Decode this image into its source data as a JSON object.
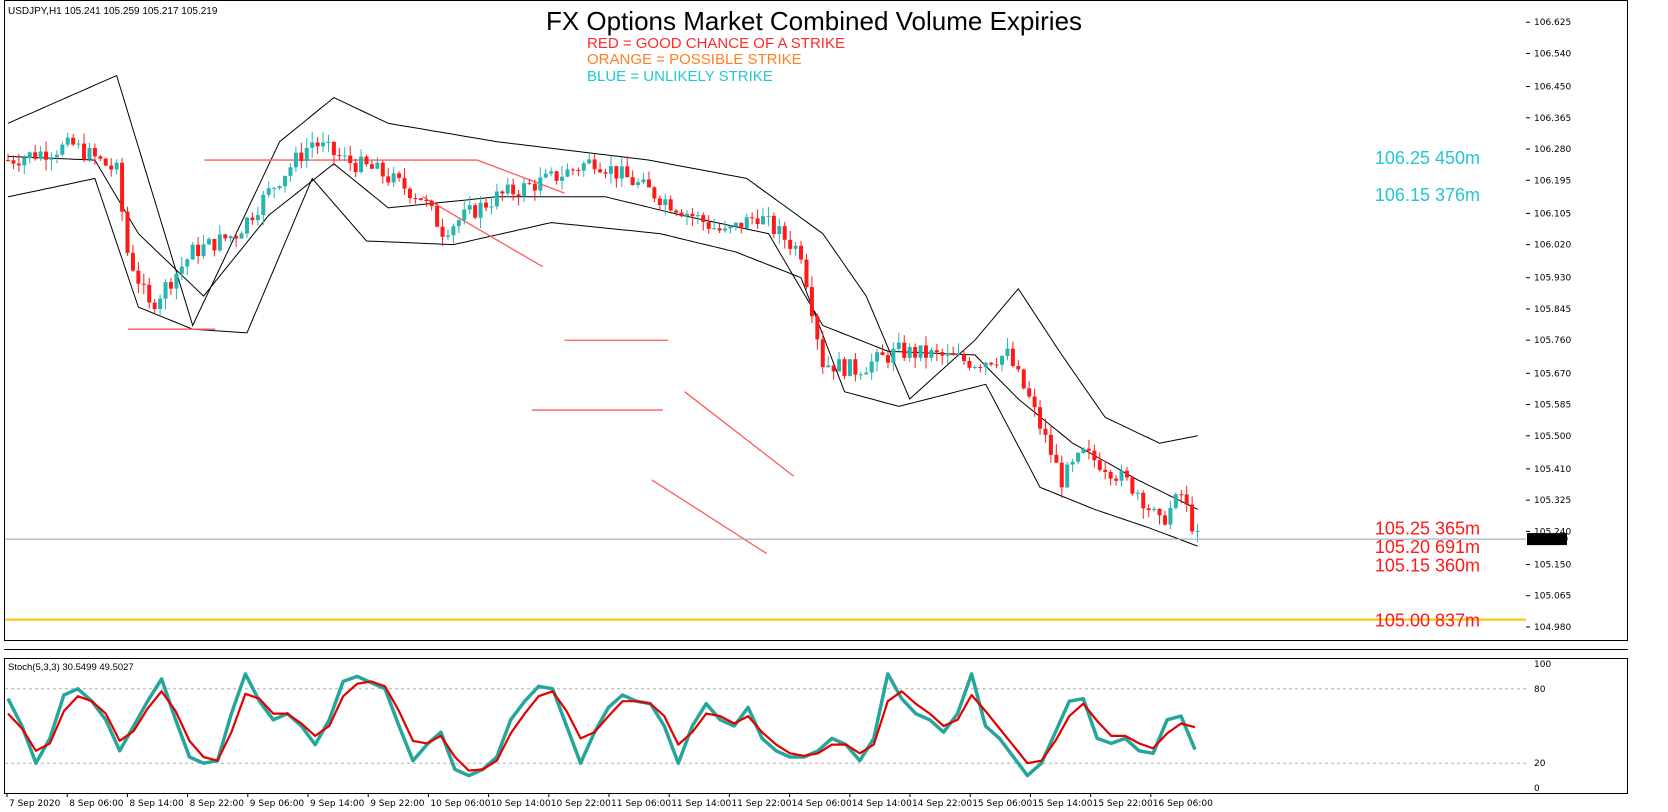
{
  "header": {
    "symbol_info": "USDJPY,H1  105.241 105.259 105.217 105.219",
    "title": "FX Options Market Combined Volume Expiries",
    "legend": [
      {
        "text": "RED = GOOD CHANCE OF A STRIKE",
        "color": "#ff2a2a"
      },
      {
        "text": "ORANGE = POSSIBLE STRIKE",
        "color": "#ff7f27"
      },
      {
        "text": "BLUE = UNLIKELY STRIKE",
        "color": "#23c6d2"
      }
    ]
  },
  "colors": {
    "bull": "#26b5b0",
    "bear": "#ff1a1a",
    "trendline": "#ff5a5a",
    "bands": "#000000",
    "current_price_line": "#8fa3b8",
    "strike_line": "#ffc000",
    "stoch_main": "#26a69a",
    "stoch_signal": "#e30000"
  },
  "chart_data": [
    {
      "type": "candlestick",
      "symbol": "USDJPY",
      "timeframe": "H1",
      "title": "FX Options Market Combined Volume Expiries",
      "ohlc_readout": {
        "open": 105.241,
        "high": 105.259,
        "low": 105.217,
        "close": 105.219
      },
      "ylim": [
        104.95,
        106.68
      ],
      "y_ticks": [
        "106.625",
        "106.540",
        "106.450",
        "106.365",
        "106.280",
        "106.195",
        "106.105",
        "106.020",
        "105.930",
        "105.845",
        "105.760",
        "105.670",
        "105.585",
        "105.500",
        "105.410",
        "105.325",
        "105.240",
        "105.150",
        "105.065",
        "104.980"
      ],
      "x_ticks": [
        "7 Sep 2020",
        "8 Sep 06:00",
        "8 Sep 14:00",
        "8 Sep 22:00",
        "9 Sep 06:00",
        "9 Sep 14:00",
        "9 Sep 22:00",
        "10 Sep 06:00",
        "10 Sep 14:00",
        "10 Sep 22:00",
        "11 Sep 06:00",
        "11 Sep 14:00",
        "11 Sep 22:00",
        "14 Sep 06:00",
        "14 Sep 14:00",
        "14 Sep 22:00",
        "15 Sep 06:00",
        "15 Sep 14:00",
        "15 Sep 22:00",
        "16 Sep 06:00"
      ],
      "current_price": "105.219",
      "close_path": [
        [
          0,
          106.25
        ],
        [
          12,
          106.29
        ],
        [
          20,
          106.22
        ],
        [
          22,
          106.0
        ],
        [
          26,
          105.85
        ],
        [
          34,
          106.0
        ],
        [
          42,
          106.05
        ],
        [
          50,
          106.2
        ],
        [
          56,
          106.3
        ],
        [
          62,
          106.25
        ],
        [
          68,
          106.22
        ],
        [
          76,
          106.15
        ],
        [
          80,
          106.06
        ],
        [
          90,
          106.15
        ],
        [
          100,
          106.2
        ],
        [
          108,
          106.25
        ],
        [
          114,
          106.2
        ],
        [
          120,
          106.15
        ],
        [
          126,
          106.1
        ],
        [
          132,
          106.05
        ],
        [
          138,
          106.1
        ],
        [
          146,
          106.0
        ],
        [
          150,
          105.7
        ],
        [
          156,
          105.68
        ],
        [
          164,
          105.73
        ],
        [
          170,
          105.72
        ],
        [
          178,
          105.7
        ],
        [
          184,
          105.72
        ],
        [
          188,
          105.6
        ],
        [
          194,
          105.38
        ],
        [
          198,
          105.45
        ],
        [
          202,
          105.42
        ],
        [
          208,
          105.35
        ],
        [
          212,
          105.26
        ],
        [
          216,
          105.34
        ],
        [
          219,
          105.22
        ]
      ],
      "bollinger": {
        "upper": [
          [
            0,
            106.35
          ],
          [
            20,
            106.48
          ],
          [
            34,
            105.8
          ],
          [
            50,
            106.3
          ],
          [
            60,
            106.42
          ],
          [
            70,
            106.35
          ],
          [
            90,
            106.3
          ],
          [
            118,
            106.25
          ],
          [
            136,
            106.2
          ],
          [
            150,
            106.05
          ],
          [
            158,
            105.88
          ],
          [
            166,
            105.6
          ],
          [
            178,
            105.76
          ],
          [
            186,
            105.9
          ],
          [
            194,
            105.72
          ],
          [
            202,
            105.55
          ],
          [
            212,
            105.48
          ],
          [
            219,
            105.5
          ]
        ],
        "middle": [
          [
            0,
            106.26
          ],
          [
            16,
            106.25
          ],
          [
            24,
            106.05
          ],
          [
            36,
            105.88
          ],
          [
            48,
            106.1
          ],
          [
            60,
            106.24
          ],
          [
            70,
            106.12
          ],
          [
            90,
            106.15
          ],
          [
            110,
            106.15
          ],
          [
            124,
            106.1
          ],
          [
            140,
            106.05
          ],
          [
            150,
            105.8
          ],
          [
            162,
            105.73
          ],
          [
            178,
            105.72
          ],
          [
            186,
            105.6
          ],
          [
            196,
            105.48
          ],
          [
            208,
            105.38
          ],
          [
            219,
            105.3
          ]
        ],
        "lower": [
          [
            0,
            106.15
          ],
          [
            16,
            106.2
          ],
          [
            24,
            105.85
          ],
          [
            34,
            105.79
          ],
          [
            44,
            105.78
          ],
          [
            56,
            106.2
          ],
          [
            66,
            106.03
          ],
          [
            82,
            106.02
          ],
          [
            100,
            106.08
          ],
          [
            120,
            106.05
          ],
          [
            134,
            106.0
          ],
          [
            146,
            105.93
          ],
          [
            154,
            105.62
          ],
          [
            164,
            105.58
          ],
          [
            180,
            105.64
          ],
          [
            190,
            105.36
          ],
          [
            200,
            105.3
          ],
          [
            210,
            105.25
          ],
          [
            219,
            105.2
          ]
        ]
      },
      "trendlines": [
        {
          "from": [
            22,
            105.79
          ],
          "to": [
            38,
            105.79
          ]
        },
        {
          "from": [
            36,
            106.25
          ],
          "to": [
            86,
            106.25
          ]
        },
        {
          "from": [
            86,
            106.25
          ],
          "to": [
            102,
            106.16
          ]
        },
        {
          "from": [
            76,
            106.15
          ],
          "to": [
            98,
            105.96
          ]
        },
        {
          "from": [
            102,
            105.76
          ],
          "to": [
            121,
            105.76
          ]
        },
        {
          "from": [
            96,
            105.57
          ],
          "to": [
            120,
            105.57
          ]
        },
        {
          "from": [
            124,
            105.62
          ],
          "to": [
            144,
            105.39
          ]
        },
        {
          "from": [
            118,
            105.38
          ],
          "to": [
            139,
            105.18
          ]
        }
      ],
      "strike_levels": [
        {
          "label": "106.25 450m",
          "price": 106.25,
          "color": "#23c6d2"
        },
        {
          "label": "106.15 376m",
          "price": 106.15,
          "color": "#23c6d2"
        },
        {
          "label": "105.25 365m",
          "price": 105.25,
          "color": "#ff1a1a"
        },
        {
          "label": "105.20 691m",
          "price": 105.2,
          "color": "#ff1a1a"
        },
        {
          "label": "105.15 360m",
          "price": 105.15,
          "color": "#ff1a1a"
        },
        {
          "label": "105.00 837m",
          "price": 105.0,
          "color": "#ff1a1a"
        }
      ]
    },
    {
      "type": "line",
      "indicator": "Stoch(5,3,3) 30.5499 49.5027",
      "ylim": [
        0,
        100
      ],
      "y_ticks": [
        "100",
        "80",
        "20",
        "0"
      ],
      "levels": [
        80,
        20
      ],
      "series": [
        {
          "values": [
            72,
            50,
            20,
            40,
            75,
            80,
            70,
            55,
            30,
            50,
            70,
            88,
            55,
            25,
            20,
            22,
            60,
            92,
            70,
            55,
            60,
            50,
            35,
            55,
            86,
            90,
            85,
            80,
            50,
            22,
            35,
            45,
            15,
            10,
            15,
            25,
            55,
            70,
            82,
            80,
            50,
            20,
            45,
            65,
            75,
            70,
            68,
            50,
            20,
            50,
            68,
            55,
            50,
            65,
            40,
            30,
            25,
            25,
            30,
            40,
            35,
            22,
            40,
            92,
            72,
            60,
            55,
            45,
            60,
            92,
            50,
            40,
            25,
            10,
            20,
            45,
            70,
            72,
            40,
            36,
            40,
            30,
            28,
            55,
            58,
            31
          ]
        },
        {
          "values": [
            60,
            48,
            30,
            36,
            62,
            74,
            70,
            60,
            38,
            46,
            64,
            78,
            62,
            38,
            25,
            22,
            45,
            76,
            72,
            60,
            60,
            52,
            42,
            50,
            74,
            84,
            86,
            82,
            62,
            38,
            36,
            42,
            25,
            14,
            15,
            22,
            44,
            60,
            74,
            78,
            62,
            40,
            45,
            58,
            70,
            70,
            68,
            58,
            35,
            45,
            60,
            58,
            52,
            58,
            45,
            35,
            28,
            26,
            28,
            35,
            35,
            28,
            35,
            70,
            78,
            68,
            60,
            50,
            55,
            75,
            62,
            48,
            34,
            20,
            22,
            38,
            58,
            68,
            54,
            42,
            42,
            36,
            32,
            44,
            52,
            49
          ]
        }
      ]
    }
  ]
}
